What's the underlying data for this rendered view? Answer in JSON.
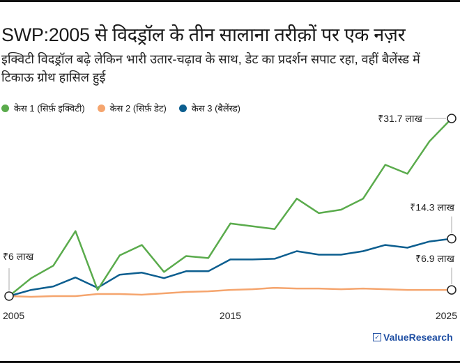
{
  "title": "SWP:2005 से विदड्रॉल के तीन सालाना तरीक़ों पर एक नज़र",
  "subtitle": "इक्विटी विदड्रॉल बढ़े लेकिन भारी उतार-चढ़ाव के साथ, डेट का प्रदर्शन सपाट रहा, वहीं बैलेंस्ड में टिकाऊ ग्रोथ हासिल हुई",
  "brand": "ValueResearch",
  "chart_data": {
    "type": "line",
    "title": "SWP:2005 से विदड्रॉल के तीन सालाना तरीक़ों पर एक नज़र",
    "x": [
      2005,
      2006,
      2007,
      2008,
      2009,
      2010,
      2011,
      2012,
      2013,
      2014,
      2015,
      2016,
      2017,
      2018,
      2019,
      2020,
      2021,
      2022,
      2023,
      2024,
      2025
    ],
    "xticks": [
      "2005",
      "2015",
      "2025"
    ],
    "ylim": [
      6,
      31.7
    ],
    "unit": "₹ लाख",
    "grid": false,
    "legend_position": "top-left",
    "series": [
      {
        "name": "केस 1 (सिर्फ़ इक्विटी)",
        "color": "#5aab4c",
        "values": [
          6,
          8.6,
          10.4,
          15.4,
          6.9,
          11.9,
          13.4,
          9.5,
          11.8,
          11.5,
          16.5,
          16.1,
          15.7,
          20.1,
          18.0,
          18.5,
          20.1,
          25.0,
          23.7,
          28.4,
          31.7
        ]
      },
      {
        "name": "केस 2 (सिर्फ़ डेट)",
        "color": "#f5a56e",
        "values": [
          6,
          5.9,
          6.0,
          6.0,
          6.3,
          6.3,
          6.2,
          6.4,
          6.6,
          6.7,
          6.9,
          7.0,
          7.2,
          7.1,
          7.1,
          7.0,
          7.1,
          7.0,
          6.9,
          6.9,
          6.9
        ]
      },
      {
        "name": "केस 3 (बैलेंस्ड)",
        "color": "#0c5e8f",
        "values": [
          6,
          6.9,
          7.4,
          8.7,
          7.2,
          9.1,
          9.4,
          8.6,
          9.6,
          9.6,
          11.3,
          11.3,
          11.4,
          12.5,
          12.0,
          12.0,
          12.5,
          13.4,
          13.0,
          13.9,
          14.3
        ]
      }
    ],
    "annotations": {
      "start": "₹6 लाख",
      "equity_end": "₹31.7 लाख",
      "balanced_end": "₹14.3 लाख",
      "debt_end": "₹6.9 लाख"
    }
  }
}
